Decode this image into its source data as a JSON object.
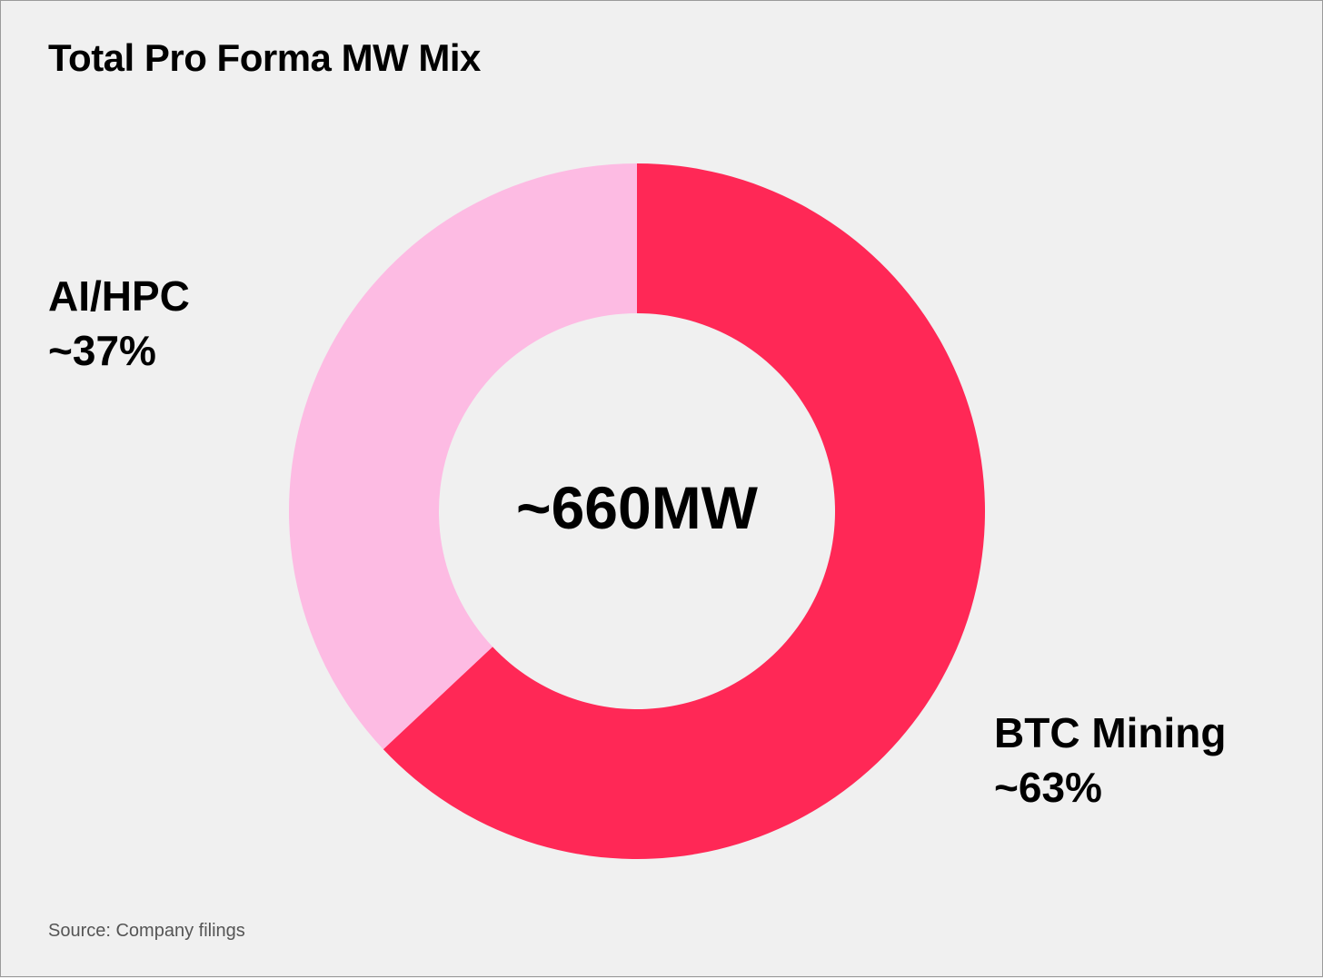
{
  "chart_data": {
    "type": "pie",
    "title": "Total Pro Forma MW Mix",
    "center_label": "~660MW",
    "slices": [
      {
        "label": "BTC Mining",
        "value": 63,
        "display": "~63%",
        "color": "#ff2856"
      },
      {
        "label": "AI/HPC",
        "value": 37,
        "display": "~37%",
        "color": "#fdbbe3"
      }
    ],
    "source": "Source: Company filings"
  }
}
